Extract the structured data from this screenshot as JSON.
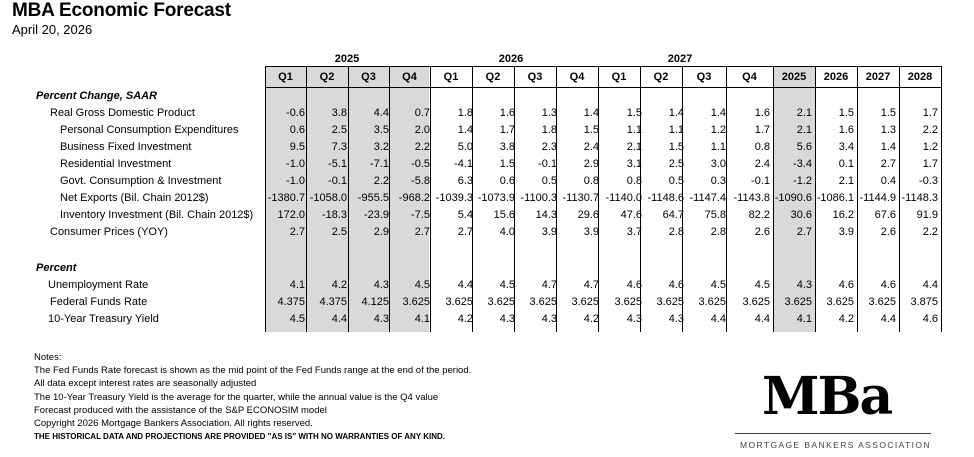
{
  "title": "MBA Economic Forecast",
  "date": "April 20, 2026",
  "years": [
    "2025",
    "2026",
    "2027"
  ],
  "columns": [
    "Q1",
    "Q2",
    "Q3",
    "Q4",
    "Q1",
    "Q2",
    "Q3",
    "Q4",
    "Q1",
    "Q2",
    "Q3",
    "Q4",
    "2025",
    "2026",
    "2027",
    "2028"
  ],
  "sections": [
    {
      "label": "Percent Change, SAAR",
      "rows": [
        {
          "label": "Real Gross Domestic Product",
          "values": [
            "-0.6",
            "3.8",
            "4.4",
            "0.7",
            "1.8",
            "1.6",
            "1.3",
            "1.4",
            "1.5",
            "1.4",
            "1.4",
            "1.6",
            "2.1",
            "1.5",
            "1.5",
            "1.7"
          ]
        },
        {
          "label": "Personal Consumption Expenditures",
          "values": [
            "0.6",
            "2.5",
            "3.5",
            "2.0",
            "1.4",
            "1.7",
            "1.8",
            "1.5",
            "1.1",
            "1.1",
            "1.2",
            "1.7",
            "2.1",
            "1.6",
            "1.3",
            "2.2"
          ]
        },
        {
          "label": "Business Fixed Investment",
          "values": [
            "9.5",
            "7.3",
            "3.2",
            "2.2",
            "5.0",
            "3.8",
            "2.3",
            "2.4",
            "2.1",
            "1.5",
            "1.1",
            "0.8",
            "5.6",
            "3.4",
            "1.4",
            "1.2"
          ]
        },
        {
          "label": "Residential Investment",
          "values": [
            "-1.0",
            "-5.1",
            "-7.1",
            "-0.5",
            "-4.1",
            "1.5",
            "-0.1",
            "2.9",
            "3.1",
            "2.5",
            "3.0",
            "2.4",
            "-3.4",
            "0.1",
            "2.7",
            "1.7"
          ]
        },
        {
          "label": "Govt. Consumption & Investment",
          "values": [
            "-1.0",
            "-0.1",
            "2.2",
            "-5.8",
            "6.3",
            "0.6",
            "0.5",
            "0.8",
            "0.8",
            "0.5",
            "0.3",
            "-0.1",
            "-1.2",
            "2.1",
            "0.4",
            "-0.3"
          ]
        },
        {
          "label": "Net Exports (Bil. Chain 2012$)",
          "values": [
            "-1380.7",
            "-1058.0",
            "-955.5",
            "-968.2",
            "-1039.3",
            "-1073.9",
            "-1100.3",
            "-1130.7",
            "-1140.0",
            "-1148.6",
            "-1147.4",
            "-1143.8",
            "-1090.6",
            "-1086.1",
            "-1144.9",
            "-1148.3"
          ]
        },
        {
          "label": "Inventory Investment (Bil. Chain 2012$)",
          "values": [
            "172.0",
            "-18.3",
            "-23.9",
            "-7.5",
            "5.4",
            "15.6",
            "14.3",
            "29.6",
            "47.6",
            "64.7",
            "75.8",
            "82.2",
            "30.6",
            "16.2",
            "67.6",
            "91.9"
          ]
        },
        {
          "label": "Consumer Prices (YOY)",
          "values": [
            "2.7",
            "2.5",
            "2.9",
            "2.7",
            "2.7",
            "4.0",
            "3.9",
            "3.9",
            "3.7",
            "2.8",
            "2.8",
            "2.6",
            "2.7",
            "3.9",
            "2.6",
            "2.2"
          ]
        }
      ]
    },
    {
      "label": "Percent",
      "rows": [
        {
          "label": "Unemployment Rate",
          "values": [
            "4.1",
            "4.2",
            "4.3",
            "4.5",
            "4.4",
            "4.5",
            "4.7",
            "4.7",
            "4.6",
            "4.6",
            "4.5",
            "4.5",
            "4.3",
            "4.6",
            "4.6",
            "4.4"
          ]
        },
        {
          "label": "Federal Funds Rate",
          "values": [
            "4.375",
            "4.375",
            "4.125",
            "3.625",
            "3.625",
            "3.625",
            "3.625",
            "3.625",
            "3.625",
            "3.625",
            "3.625",
            "3.625",
            "3.625",
            "3.625",
            "3.625",
            "3.875"
          ]
        },
        {
          "label": "10-Year Treasury Yield",
          "values": [
            "4.5",
            "4.4",
            "4.3",
            "4.1",
            "4.2",
            "4.3",
            "4.3",
            "4.2",
            "4.3",
            "4.3",
            "4.4",
            "4.4",
            "4.1",
            "4.2",
            "4.4",
            "4.6"
          ]
        }
      ]
    }
  ],
  "notes": {
    "heading": "Notes:",
    "lines": [
      "The Fed Funds Rate forecast is shown as the mid point of the Fed Funds range at the end of the period.",
      "All data except interest rates are seasonally adjusted",
      "The 10-Year Treasury Yield is the average for the quarter, while the annual value is the Q4 value",
      "Forecast produced with the assistance of the S&P ECONOSIM model",
      "Copyright 2026 Mortgage Bankers Association.  All rights reserved."
    ],
    "disclaimer": "THE HISTORICAL DATA AND PROJECTIONS ARE PROVIDED \"AS IS\" WITH NO WARRANTIES OF ANY KIND."
  },
  "logo": {
    "mark": "MBa",
    "subtitle": "MORTGAGE BANKERS ASSOCIATION"
  }
}
